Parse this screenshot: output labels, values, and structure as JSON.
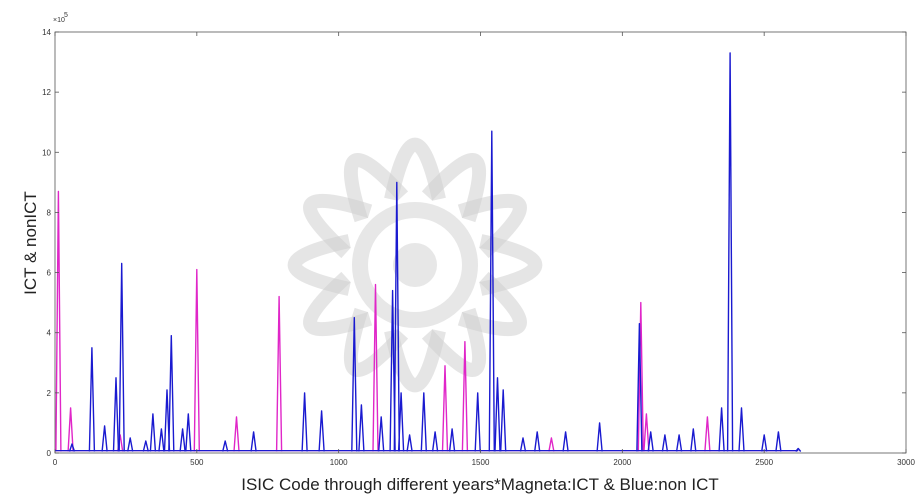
{
  "chart_data": {
    "type": "line",
    "title": "",
    "xlabel": "ISIC Code through different years*Magneta:ICT & Blue:non ICT",
    "ylabel": "ICT & nonICT",
    "y_exponent_label": "×10",
    "y_exponent": "5",
    "xlim": [
      0,
      3000
    ],
    "ylim": [
      0,
      14
    ],
    "xticks": [
      "0",
      "500",
      "1000",
      "1500",
      "2000",
      "2500",
      "3000"
    ],
    "yticks": [
      "0",
      "2",
      "4",
      "6",
      "8",
      "10",
      "12",
      "14"
    ],
    "grid": false,
    "colors": {
      "ict": "#e026c8",
      "nonict": "#1a1ad0",
      "axis": "#555555",
      "watermark": "#cfcfcf"
    },
    "series": [
      {
        "key": "ict",
        "peaks": [
          [
            12,
            8.7
          ],
          [
            55,
            1.5
          ],
          [
            230,
            0.6
          ],
          [
            500,
            6.1
          ],
          [
            640,
            1.2
          ],
          [
            790,
            5.2
          ],
          [
            1130,
            5.6
          ],
          [
            1375,
            2.9
          ],
          [
            1445,
            3.7
          ],
          [
            1750,
            0.5
          ],
          [
            2065,
            5.0
          ],
          [
            2085,
            1.3
          ],
          [
            2300,
            1.2
          ]
        ]
      },
      {
        "key": "nonict",
        "peaks": [
          [
            60,
            0.3
          ],
          [
            130,
            3.5
          ],
          [
            175,
            0.9
          ],
          [
            215,
            2.5
          ],
          [
            235,
            6.3
          ],
          [
            265,
            0.5
          ],
          [
            320,
            0.4
          ],
          [
            345,
            1.3
          ],
          [
            375,
            0.8
          ],
          [
            395,
            2.1
          ],
          [
            410,
            3.9
          ],
          [
            450,
            0.8
          ],
          [
            470,
            1.3
          ],
          [
            600,
            0.4
          ],
          [
            700,
            0.7
          ],
          [
            880,
            2.0
          ],
          [
            940,
            1.4
          ],
          [
            1055,
            4.5
          ],
          [
            1080,
            1.6
          ],
          [
            1150,
            1.2
          ],
          [
            1190,
            5.4
          ],
          [
            1205,
            9.0
          ],
          [
            1220,
            2.0
          ],
          [
            1250,
            0.6
          ],
          [
            1300,
            2.0
          ],
          [
            1340,
            0.7
          ],
          [
            1400,
            0.8
          ],
          [
            1490,
            2.0
          ],
          [
            1540,
            10.7
          ],
          [
            1560,
            2.5
          ],
          [
            1580,
            2.1
          ],
          [
            1650,
            0.5
          ],
          [
            1700,
            0.7
          ],
          [
            1800,
            0.7
          ],
          [
            1920,
            1.0
          ],
          [
            2060,
            4.3
          ],
          [
            2100,
            0.7
          ],
          [
            2150,
            0.6
          ],
          [
            2200,
            0.6
          ],
          [
            2250,
            0.8
          ],
          [
            2350,
            1.5
          ],
          [
            2380,
            13.3
          ],
          [
            2420,
            1.5
          ],
          [
            2500,
            0.6
          ],
          [
            2550,
            0.7
          ],
          [
            2620,
            0.15
          ]
        ]
      }
    ]
  }
}
